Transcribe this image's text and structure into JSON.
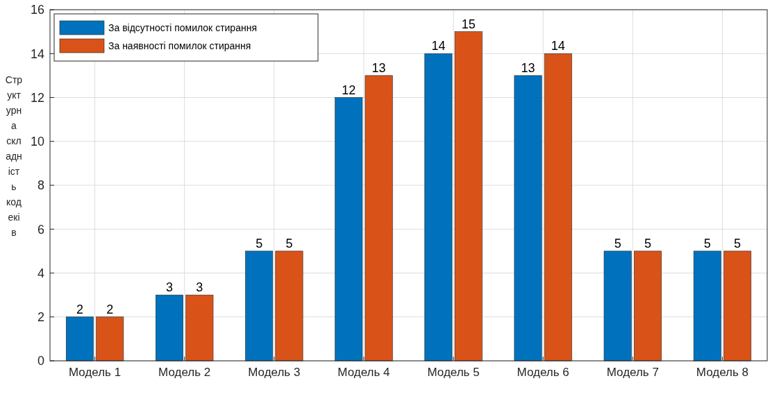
{
  "chart_data": {
    "type": "bar",
    "ylabel": "Структурна складність кодеків",
    "categories": [
      "Модель 1",
      "Модель 2",
      "Модель 3",
      "Модель 4",
      "Модель 5",
      "Модель 6",
      "Модель 7",
      "Модель 8"
    ],
    "series": [
      {
        "name": "За відсутності помилок стирання",
        "color": "#0072bd",
        "values": [
          2,
          3,
          5,
          12,
          14,
          13,
          5,
          5
        ]
      },
      {
        "name": "За наявності помилок стирання",
        "color": "#d95319",
        "values": [
          2,
          3,
          5,
          13,
          15,
          14,
          5,
          5
        ]
      }
    ],
    "ylim": [
      0,
      16
    ],
    "yticks": [
      0,
      2,
      4,
      6,
      8,
      10,
      12,
      14,
      16
    ],
    "grid": true,
    "legend": "top left",
    "data_labels": true
  }
}
